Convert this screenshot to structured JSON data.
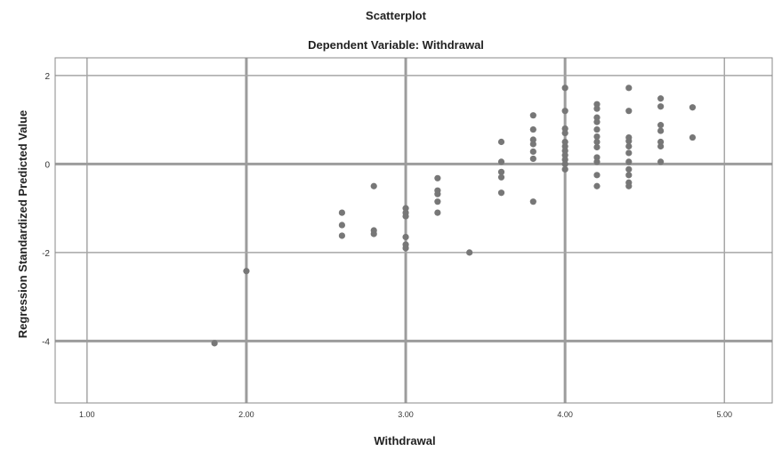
{
  "chart_data": {
    "type": "scatter",
    "title": "Scatterplot",
    "subtitle": "Dependent Variable: Withdrawal",
    "xlabel": "Withdrawal",
    "ylabel": "Regression Standardized Predicted Value",
    "xlim": [
      0.8,
      5.3
    ],
    "ylim": [
      -5.4,
      2.4
    ],
    "xticks": [
      "1.00",
      "2.00",
      "3.00",
      "4.00",
      "5.00"
    ],
    "xtick_values": [
      1,
      2,
      3,
      4,
      5
    ],
    "yticks": [
      "2",
      "0",
      "-2",
      "-4"
    ],
    "ytick_values": [
      2,
      0,
      -2,
      -4
    ],
    "grid": true,
    "points": [
      {
        "x": 1.8,
        "y": -4.05
      },
      {
        "x": 2.0,
        "y": -2.42
      },
      {
        "x": 2.6,
        "y": -1.1
      },
      {
        "x": 2.6,
        "y": -1.38
      },
      {
        "x": 2.6,
        "y": -1.62
      },
      {
        "x": 2.8,
        "y": -0.5
      },
      {
        "x": 2.8,
        "y": -1.5
      },
      {
        "x": 2.8,
        "y": -1.58
      },
      {
        "x": 3.0,
        "y": -1.0
      },
      {
        "x": 3.0,
        "y": -1.1
      },
      {
        "x": 3.0,
        "y": -1.18
      },
      {
        "x": 3.0,
        "y": -1.65
      },
      {
        "x": 3.0,
        "y": -1.82
      },
      {
        "x": 3.0,
        "y": -1.9
      },
      {
        "x": 3.2,
        "y": -0.32
      },
      {
        "x": 3.2,
        "y": -0.6
      },
      {
        "x": 3.2,
        "y": -0.68
      },
      {
        "x": 3.2,
        "y": -0.85
      },
      {
        "x": 3.2,
        "y": -1.1
      },
      {
        "x": 3.4,
        "y": -2.0
      },
      {
        "x": 3.6,
        "y": 0.5
      },
      {
        "x": 3.6,
        "y": 0.05
      },
      {
        "x": 3.6,
        "y": -0.18
      },
      {
        "x": 3.6,
        "y": -0.3
      },
      {
        "x": 3.6,
        "y": -0.65
      },
      {
        "x": 3.8,
        "y": 1.1
      },
      {
        "x": 3.8,
        "y": 0.78
      },
      {
        "x": 3.8,
        "y": 0.55
      },
      {
        "x": 3.8,
        "y": 0.45
      },
      {
        "x": 3.8,
        "y": 0.28
      },
      {
        "x": 3.8,
        "y": 0.12
      },
      {
        "x": 3.8,
        "y": -0.85
      },
      {
        "x": 4.0,
        "y": 1.72
      },
      {
        "x": 4.0,
        "y": 1.2
      },
      {
        "x": 4.0,
        "y": 0.8
      },
      {
        "x": 4.0,
        "y": 0.7
      },
      {
        "x": 4.0,
        "y": 0.5
      },
      {
        "x": 4.0,
        "y": 0.4
      },
      {
        "x": 4.0,
        "y": 0.3
      },
      {
        "x": 4.0,
        "y": 0.2
      },
      {
        "x": 4.0,
        "y": 0.1
      },
      {
        "x": 4.0,
        "y": 0.0
      },
      {
        "x": 4.0,
        "y": -0.12
      },
      {
        "x": 4.2,
        "y": 1.35
      },
      {
        "x": 4.2,
        "y": 1.25
      },
      {
        "x": 4.2,
        "y": 1.05
      },
      {
        "x": 4.2,
        "y": 0.95
      },
      {
        "x": 4.2,
        "y": 0.78
      },
      {
        "x": 4.2,
        "y": 0.62
      },
      {
        "x": 4.2,
        "y": 0.5
      },
      {
        "x": 4.2,
        "y": 0.38
      },
      {
        "x": 4.2,
        "y": 0.15
      },
      {
        "x": 4.2,
        "y": 0.05
      },
      {
        "x": 4.2,
        "y": -0.25
      },
      {
        "x": 4.2,
        "y": -0.5
      },
      {
        "x": 4.4,
        "y": 1.72
      },
      {
        "x": 4.4,
        "y": 1.2
      },
      {
        "x": 4.4,
        "y": 0.6
      },
      {
        "x": 4.4,
        "y": 0.52
      },
      {
        "x": 4.4,
        "y": 0.4
      },
      {
        "x": 4.4,
        "y": 0.25
      },
      {
        "x": 4.4,
        "y": 0.05
      },
      {
        "x": 4.4,
        "y": -0.12
      },
      {
        "x": 4.4,
        "y": -0.25
      },
      {
        "x": 4.4,
        "y": -0.42
      },
      {
        "x": 4.4,
        "y": -0.5
      },
      {
        "x": 4.6,
        "y": 1.48
      },
      {
        "x": 4.6,
        "y": 1.3
      },
      {
        "x": 4.6,
        "y": 0.88
      },
      {
        "x": 4.6,
        "y": 0.75
      },
      {
        "x": 4.6,
        "y": 0.5
      },
      {
        "x": 4.6,
        "y": 0.4
      },
      {
        "x": 4.6,
        "y": 0.05
      },
      {
        "x": 4.8,
        "y": 1.28
      },
      {
        "x": 4.8,
        "y": 0.6
      }
    ]
  },
  "colors": {
    "point": "#777777",
    "grid": "#a6a6a6",
    "grid_major": "#9c9c9c",
    "frame": "#8a8a8a",
    "background": "#ffffff"
  }
}
